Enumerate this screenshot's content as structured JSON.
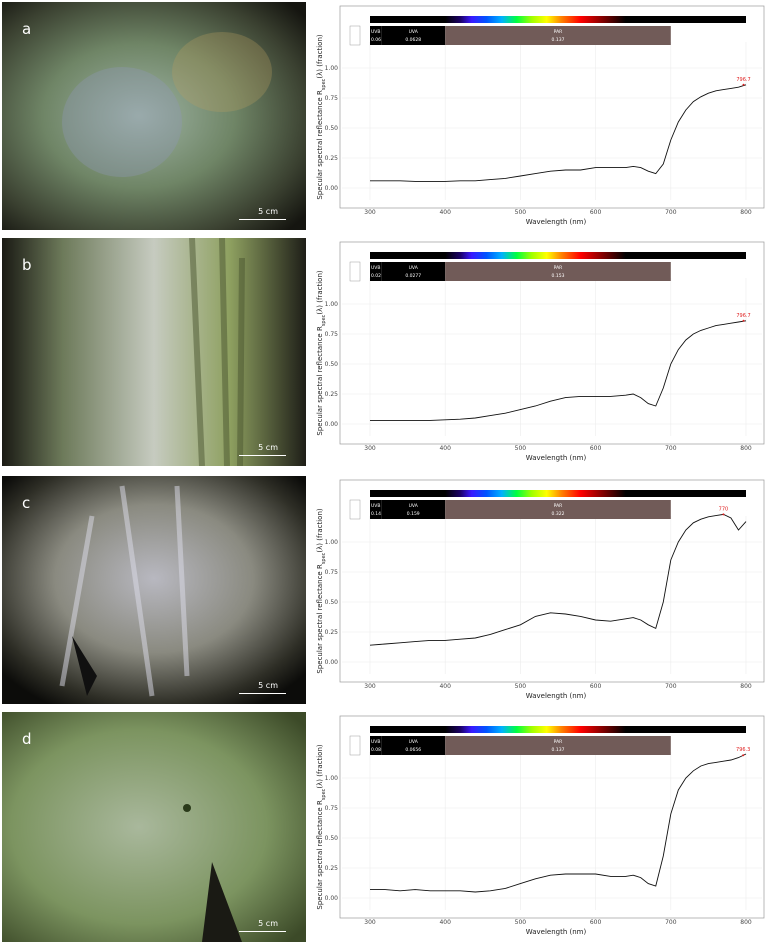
{
  "chart_data": [
    {
      "panel": "a",
      "type": "line",
      "scale_label": "5 cm",
      "ylabel": "Specular spectral reflectance R",
      "ylabel_sub": "spec",
      "ylabel_tail": "(λ) (fraction)",
      "xlabel": "Wavelength (nm)",
      "xlim": [
        300,
        800
      ],
      "ylim": [
        0,
        1.25
      ],
      "x_ticks": [
        300,
        400,
        500,
        600,
        700,
        800
      ],
      "y_ticks": [
        "0.00",
        "0.25",
        "0.50",
        "0.75",
        "1.00"
      ],
      "y_tick_values": [
        0,
        0.25,
        0.5,
        0.75,
        1.0
      ],
      "grid": true,
      "bands": [
        {
          "name": "UVB",
          "value": "0.062",
          "start": 300,
          "end": 315,
          "color": "#000000"
        },
        {
          "name": "UVA",
          "value": "0.0628",
          "start": 315,
          "end": 400,
          "color": "#000000"
        },
        {
          "name": "PAR",
          "value": "0.137",
          "start": 400,
          "end": 700,
          "color": "#715b58"
        }
      ],
      "peak_label": "796.7",
      "peak_x": 796.7,
      "peak_y": 0.86,
      "x": [
        300,
        320,
        340,
        360,
        380,
        400,
        420,
        440,
        460,
        480,
        500,
        520,
        540,
        560,
        580,
        600,
        620,
        640,
        650,
        660,
        670,
        680,
        690,
        700,
        710,
        720,
        730,
        740,
        750,
        760,
        770,
        780,
        790,
        800
      ],
      "y": [
        0.06,
        0.06,
        0.06,
        0.055,
        0.055,
        0.055,
        0.06,
        0.06,
        0.07,
        0.08,
        0.1,
        0.12,
        0.14,
        0.15,
        0.15,
        0.17,
        0.17,
        0.17,
        0.18,
        0.17,
        0.14,
        0.12,
        0.2,
        0.4,
        0.55,
        0.65,
        0.72,
        0.76,
        0.79,
        0.81,
        0.82,
        0.83,
        0.84,
        0.86
      ]
    },
    {
      "panel": "b",
      "type": "line",
      "scale_label": "5 cm",
      "ylabel": "Specular spectral reflectance R",
      "ylabel_sub": "spec",
      "ylabel_tail": "(λ) (fraction)",
      "xlabel": "Wavelength (nm)",
      "xlim": [
        300,
        800
      ],
      "ylim": [
        0,
        1.25
      ],
      "x_ticks": [
        300,
        400,
        500,
        600,
        700,
        800
      ],
      "y_ticks": [
        "0.00",
        "0.25",
        "0.50",
        "0.75",
        "1.00"
      ],
      "y_tick_values": [
        0,
        0.25,
        0.5,
        0.75,
        1.0
      ],
      "grid": true,
      "bands": [
        {
          "name": "UVB",
          "value": "0.0286",
          "start": 300,
          "end": 315,
          "color": "#000000"
        },
        {
          "name": "UVA",
          "value": "0.0277",
          "start": 315,
          "end": 400,
          "color": "#000000"
        },
        {
          "name": "PAR",
          "value": "0.153",
          "start": 400,
          "end": 700,
          "color": "#715b58"
        }
      ],
      "peak_label": "796.7",
      "peak_x": 796.7,
      "peak_y": 0.86,
      "x": [
        300,
        320,
        340,
        360,
        380,
        400,
        420,
        440,
        460,
        480,
        500,
        520,
        540,
        560,
        580,
        600,
        620,
        640,
        650,
        660,
        670,
        680,
        690,
        700,
        710,
        720,
        730,
        740,
        750,
        760,
        770,
        780,
        790,
        800
      ],
      "y": [
        0.03,
        0.03,
        0.03,
        0.03,
        0.03,
        0.035,
        0.04,
        0.05,
        0.07,
        0.09,
        0.12,
        0.15,
        0.19,
        0.22,
        0.23,
        0.23,
        0.23,
        0.24,
        0.25,
        0.22,
        0.17,
        0.15,
        0.3,
        0.5,
        0.62,
        0.7,
        0.75,
        0.78,
        0.8,
        0.82,
        0.83,
        0.84,
        0.85,
        0.86
      ]
    },
    {
      "panel": "c",
      "type": "line",
      "scale_label": "5 cm",
      "ylabel": "Specular spectral reflectance R",
      "ylabel_sub": "spec",
      "ylabel_tail": "(λ) (fraction)",
      "xlabel": "Wavelength (nm)",
      "xlim": [
        300,
        800
      ],
      "ylim": [
        0,
        1.25
      ],
      "x_ticks": [
        300,
        400,
        500,
        600,
        700,
        800
      ],
      "y_ticks": [
        "0.00",
        "0.25",
        "0.50",
        "0.75",
        "1.00"
      ],
      "y_tick_values": [
        0,
        0.25,
        0.5,
        0.75,
        1.0
      ],
      "grid": true,
      "bands": [
        {
          "name": "UVB",
          "value": "0.144",
          "start": 300,
          "end": 315,
          "color": "#000000"
        },
        {
          "name": "UVA",
          "value": "0.159",
          "start": 315,
          "end": 400,
          "color": "#000000"
        },
        {
          "name": "PAR",
          "value": "0.322",
          "start": 400,
          "end": 700,
          "color": "#715b58"
        }
      ],
      "peak_label": "770",
      "peak_x": 770,
      "peak_y": 1.23,
      "x": [
        300,
        320,
        340,
        360,
        380,
        400,
        420,
        440,
        460,
        480,
        500,
        520,
        540,
        560,
        580,
        600,
        620,
        640,
        650,
        660,
        670,
        680,
        690,
        700,
        710,
        720,
        730,
        740,
        750,
        760,
        770,
        780,
        790,
        800
      ],
      "y": [
        0.14,
        0.15,
        0.16,
        0.17,
        0.18,
        0.18,
        0.19,
        0.2,
        0.23,
        0.27,
        0.31,
        0.38,
        0.41,
        0.4,
        0.38,
        0.35,
        0.34,
        0.36,
        0.37,
        0.35,
        0.31,
        0.28,
        0.5,
        0.85,
        1.0,
        1.1,
        1.16,
        1.19,
        1.21,
        1.22,
        1.23,
        1.2,
        1.1,
        1.17
      ]
    },
    {
      "panel": "d",
      "type": "line",
      "scale_label": "5 cm",
      "ylabel": "Specular spectral reflectance R",
      "ylabel_sub": "spec",
      "ylabel_tail": "(λ) (fraction)",
      "xlabel": "Wavelength (nm)",
      "xlim": [
        300,
        800
      ],
      "ylim": [
        0,
        1.25
      ],
      "x_ticks": [
        300,
        400,
        500,
        600,
        700,
        800
      ],
      "y_ticks": [
        "0.00",
        "0.25",
        "0.50",
        "0.75",
        "1.00"
      ],
      "y_tick_values": [
        0,
        0.25,
        0.5,
        0.75,
        1.0
      ],
      "grid": true,
      "bands": [
        {
          "name": "UVB",
          "value": "0.0803",
          "start": 300,
          "end": 315,
          "color": "#000000"
        },
        {
          "name": "UVA",
          "value": "0.0656",
          "start": 315,
          "end": 400,
          "color": "#000000"
        },
        {
          "name": "PAR",
          "value": "0.137",
          "start": 400,
          "end": 700,
          "color": "#715b58"
        }
      ],
      "peak_label": "796.3",
      "peak_x": 796.3,
      "peak_y": 1.19,
      "x": [
        300,
        320,
        340,
        360,
        380,
        400,
        420,
        440,
        460,
        480,
        500,
        520,
        540,
        560,
        580,
        600,
        620,
        640,
        650,
        660,
        670,
        680,
        690,
        700,
        710,
        720,
        730,
        740,
        750,
        760,
        770,
        780,
        790,
        800
      ],
      "y": [
        0.07,
        0.07,
        0.06,
        0.07,
        0.06,
        0.06,
        0.06,
        0.05,
        0.06,
        0.08,
        0.12,
        0.16,
        0.19,
        0.2,
        0.2,
        0.2,
        0.18,
        0.18,
        0.19,
        0.17,
        0.12,
        0.1,
        0.35,
        0.7,
        0.9,
        1.0,
        1.06,
        1.1,
        1.12,
        1.13,
        1.14,
        1.15,
        1.17,
        1.2
      ]
    }
  ]
}
